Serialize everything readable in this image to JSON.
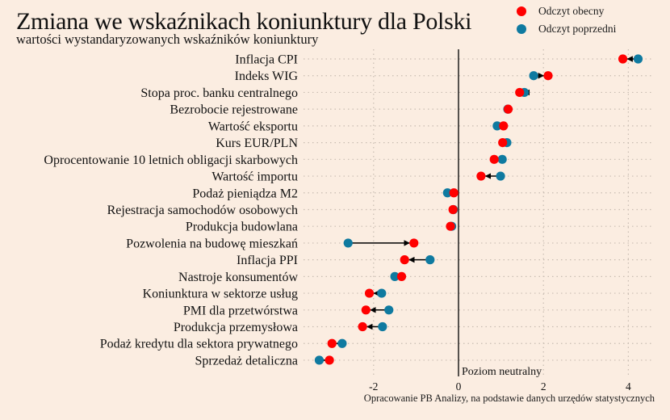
{
  "chart_data": {
    "type": "dumbbell",
    "title": "Zmiana we wskaźnikach koniunktury dla Polski",
    "subtitle": "wartości wystandaryzowanych wskaźników koniunktury",
    "source": "Opracowanie PB Analizy, na podstawie danych urzędów statystycznych",
    "xlabel": "",
    "ylabel": "",
    "xlim": [
      -3.6,
      4.6
    ],
    "x_ticks": [
      -2,
      0,
      2,
      4
    ],
    "x_tick_labels": [
      "-2",
      "0",
      "2",
      "4"
    ],
    "reference_line": {
      "x": 0,
      "label": "Poziom neutralny"
    },
    "grid": true,
    "legend": {
      "position": "top-right",
      "entries": [
        {
          "name": "Odczyt obecny",
          "color": "#ff0000"
        },
        {
          "name": "Odczyt poprzedni",
          "color": "#0f7aa0"
        }
      ]
    },
    "categories": [
      "Inflacja CPI",
      "Indeks WIG",
      "Stopa proc. banku centralnego",
      "Bezrobocie rejestrowane",
      "Wartość eksportu",
      "Kurs EUR/PLN",
      "Oprocentowanie 10 letnich obligacji skarbowych",
      "Wartość importu",
      "Podaż pieniądza M2",
      "Rejestracja samochodów osobowych",
      "Produkcja budowlana",
      "Pozwolenia na budowę mieszkań",
      "Inflacja PPI",
      "Nastroje konsumentów",
      "Koniunktura w sektorze usług",
      "PMI dla przetwórstwa",
      "Produkcja przemysłowa",
      "Podaż kredytu dla sektora prywatnego",
      "Sprzedaż detaliczna"
    ],
    "series": [
      {
        "name": "Odczyt obecny",
        "color": "#ff0000",
        "values": [
          3.87,
          2.11,
          1.44,
          1.17,
          1.06,
          1.04,
          0.84,
          0.53,
          -0.11,
          -0.13,
          -0.19,
          -1.05,
          -1.27,
          -1.34,
          -2.1,
          -2.18,
          -2.26,
          -2.98,
          -3.04
        ]
      },
      {
        "name": "Odczyt poprzedni",
        "color": "#0f7aa0",
        "values": [
          4.23,
          1.77,
          1.55,
          1.16,
          0.91,
          1.14,
          1.03,
          0.99,
          -0.26,
          -0.12,
          -0.16,
          -2.6,
          -0.67,
          -1.5,
          -1.81,
          -1.64,
          -1.79,
          -2.74,
          -3.28
        ]
      }
    ]
  }
}
